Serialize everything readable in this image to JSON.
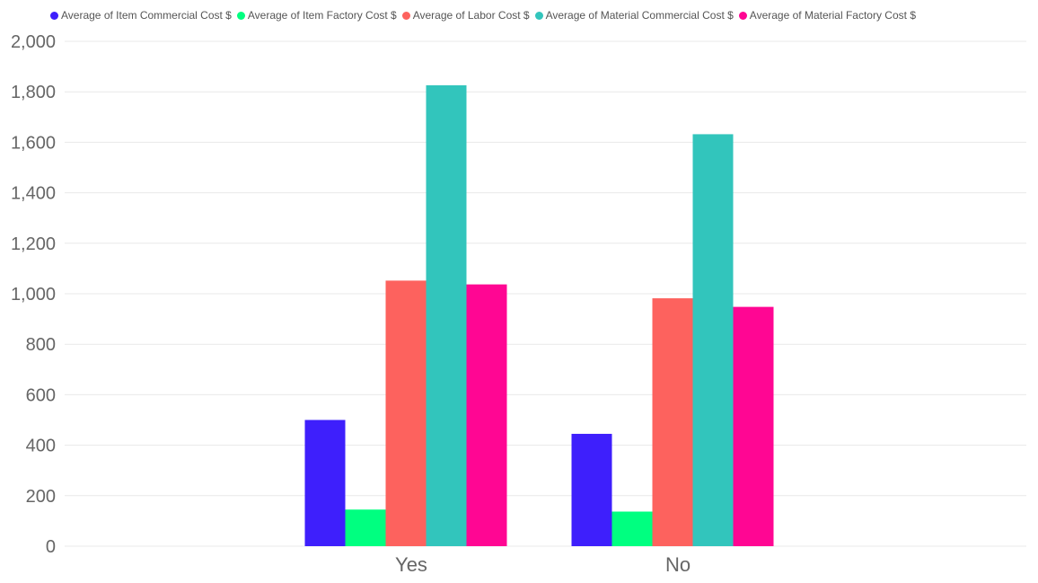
{
  "chart_data": {
    "type": "bar",
    "categories": [
      "Yes",
      "No"
    ],
    "series": [
      {
        "name": "Average of Item Commercial Cost $",
        "color": "#3e1ffc",
        "values": [
          500,
          445
        ]
      },
      {
        "name": "Average of Item Factory Cost $",
        "color": "#00ff80",
        "values": [
          145,
          137
        ]
      },
      {
        "name": "Average of Labor Cost $",
        "color": "#fd625e",
        "values": [
          1052,
          982
        ]
      },
      {
        "name": "Average of Material Commercial Cost $",
        "color": "#32c5bc",
        "values": [
          1826,
          1632
        ]
      },
      {
        "name": "Average of Material Factory Cost $",
        "color": "#ff0693",
        "values": [
          1037,
          948
        ]
      }
    ],
    "ylim": [
      0,
      2000
    ],
    "yticks": [
      "0",
      "200",
      "400",
      "600",
      "800",
      "1,000",
      "1,200",
      "1,400",
      "1,600",
      "1,800",
      "2,000"
    ],
    "ytick_values": [
      0,
      200,
      400,
      600,
      800,
      1000,
      1200,
      1400,
      1600,
      1800,
      2000
    ],
    "grid": true,
    "legend_position": "top-left",
    "title": "",
    "xlabel": "",
    "ylabel": ""
  }
}
